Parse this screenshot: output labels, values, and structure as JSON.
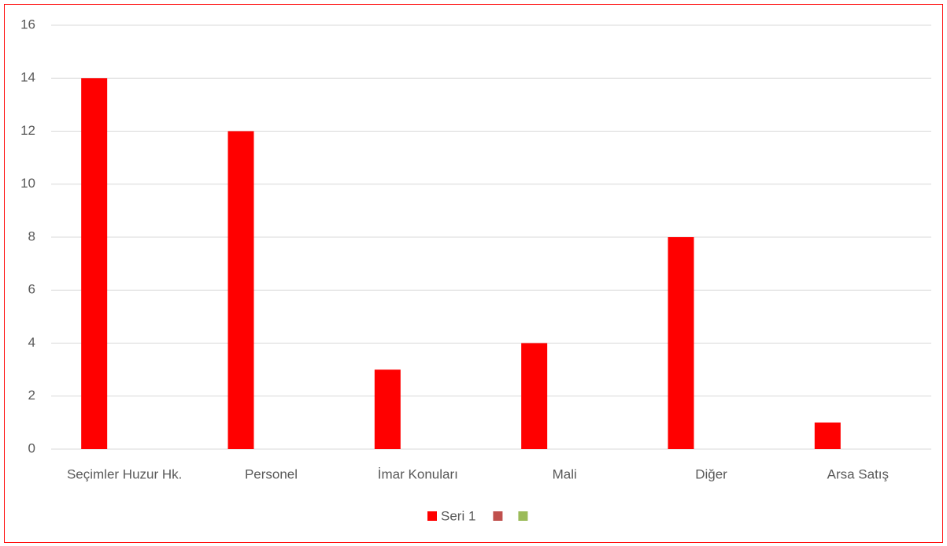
{
  "chart_data": {
    "type": "bar",
    "categories": [
      "Seçimler Huzur Hk.",
      "Personel",
      "İmar Konuları",
      "Mali",
      "Diğer",
      "Arsa Satış"
    ],
    "series": [
      {
        "name": "Seri 1",
        "color": "#ff0000",
        "values": [
          14,
          12,
          3,
          4,
          8,
          1
        ]
      },
      {
        "color": "#c0504d",
        "values": [
          null,
          null,
          null,
          null,
          null,
          null
        ]
      },
      {
        "color": "#9bbb59",
        "values": [
          null,
          null,
          null,
          null,
          null,
          null
        ]
      }
    ],
    "ylim": [
      0,
      16
    ],
    "yticks": [
      0,
      2,
      4,
      6,
      8,
      10,
      12,
      14,
      16
    ],
    "grid": true,
    "legend": "bottom"
  }
}
